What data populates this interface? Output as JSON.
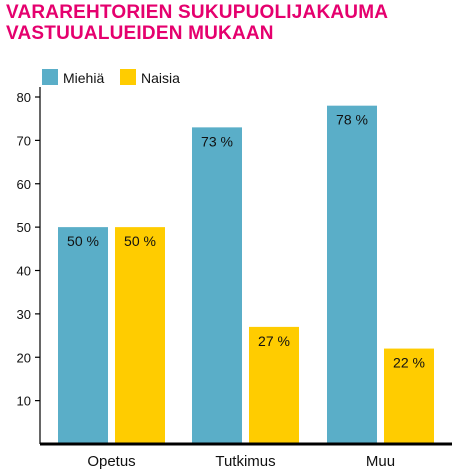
{
  "chart_data": {
    "type": "bar",
    "title_lines": [
      "VARAREHTORIEN SUKUPUOLIJAKAUMA",
      "VASTUUALUEIDEN MUKAAN"
    ],
    "categories": [
      "Opetus",
      "Tutkimus",
      "Muu"
    ],
    "series": [
      {
        "name": "Miehiä",
        "values": [
          50,
          73,
          78
        ],
        "labels": [
          "50 %",
          "73 %",
          "78 %"
        ],
        "color": "#5aaec8"
      },
      {
        "name": "Naisia",
        "values": [
          50,
          27,
          22
        ],
        "labels": [
          "50 %",
          "27 %",
          "22 %"
        ],
        "color": "#ffcc00"
      }
    ],
    "y_ticks": [
      10,
      20,
      30,
      40,
      50,
      60,
      70,
      80
    ],
    "ylim": [
      0,
      80
    ],
    "grid": false,
    "legend_position": "top-left",
    "axis_color": "#000000",
    "title_color": "#e5006e"
  }
}
